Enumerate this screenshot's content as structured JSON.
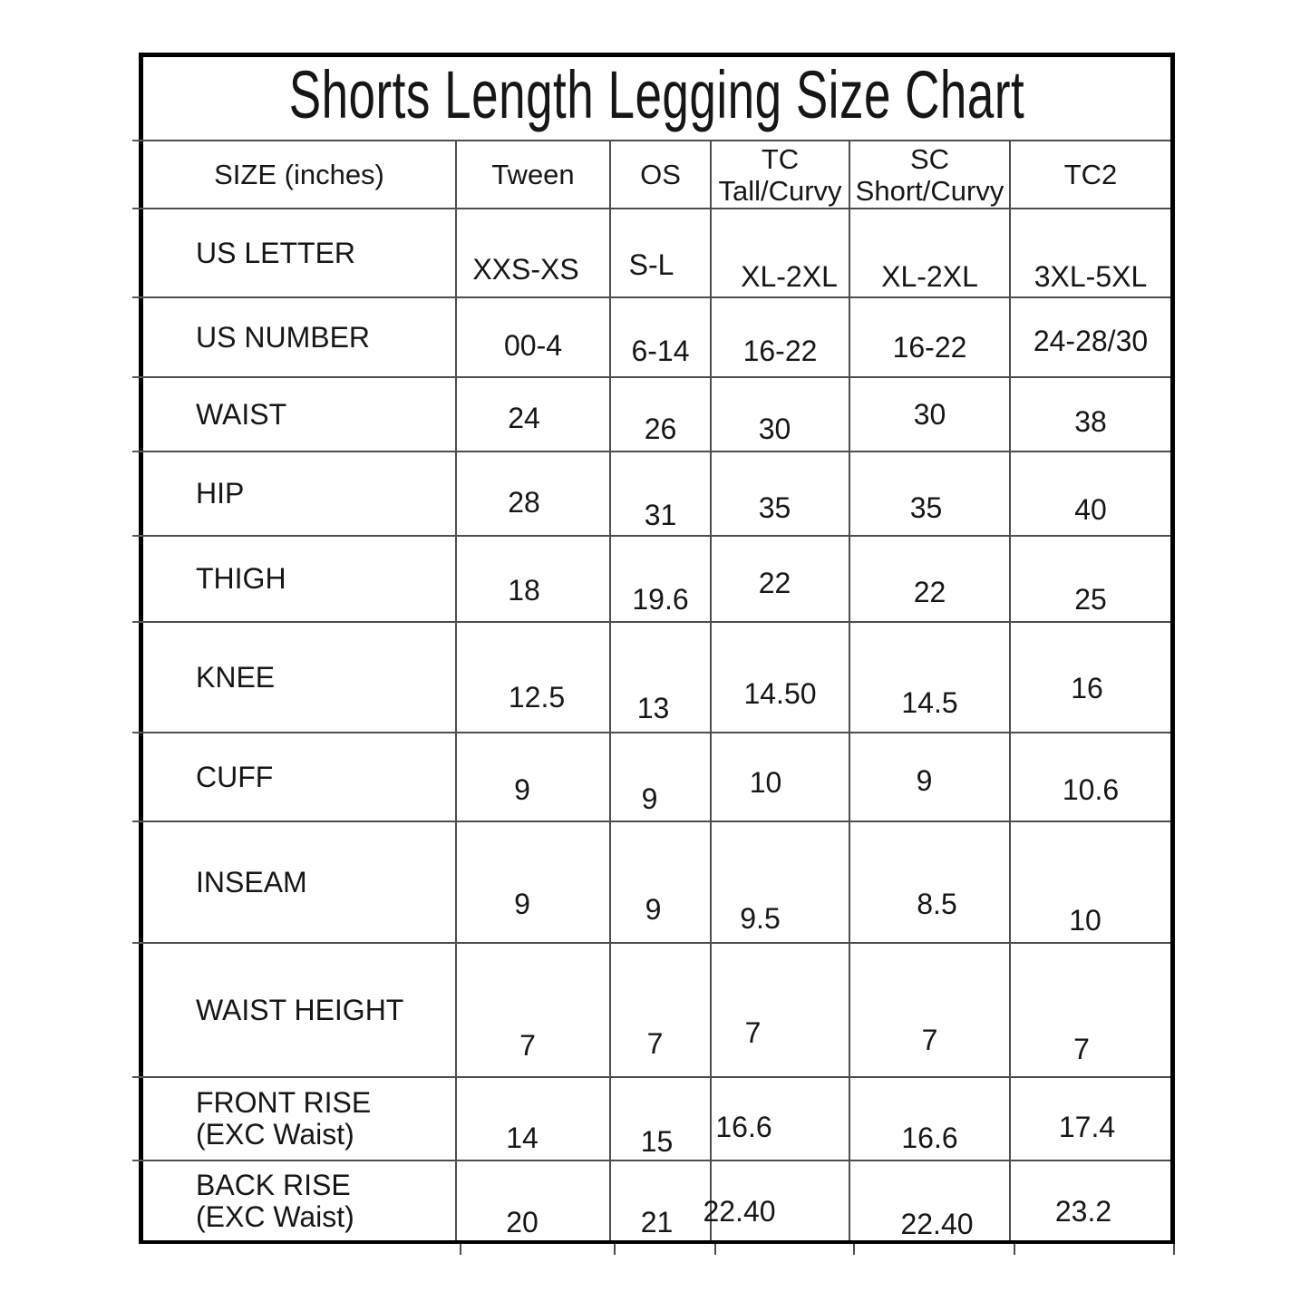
{
  "title": "Shorts Length Legging Size Chart",
  "table": {
    "columns": [
      {
        "id": "size",
        "label": "SIZE (inches)",
        "sublabel": ""
      },
      {
        "id": "tween",
        "label": "Tween",
        "sublabel": ""
      },
      {
        "id": "os",
        "label": "OS",
        "sublabel": ""
      },
      {
        "id": "tc",
        "label": "TC",
        "sublabel": "Tall/Curvy"
      },
      {
        "id": "sc",
        "label": "SC",
        "sublabel": "Short/Curvy"
      },
      {
        "id": "tc2",
        "label": "TC2",
        "sublabel": ""
      }
    ],
    "rows": [
      {
        "id": "us-letter",
        "label": "US LETTER",
        "sublabel": "",
        "values": [
          "XXS-XS",
          "S-L",
          "XL-2XL",
          "XL-2XL",
          "3XL-5XL"
        ]
      },
      {
        "id": "us-number",
        "label": "US NUMBER",
        "sublabel": "",
        "values": [
          "00-4",
          "6-14",
          "16-22",
          "16-22",
          "24-28/30"
        ]
      },
      {
        "id": "waist",
        "label": "WAIST",
        "sublabel": "",
        "values": [
          "24",
          "26",
          "30",
          "30",
          "38"
        ]
      },
      {
        "id": "hip",
        "label": "HIP",
        "sublabel": "",
        "values": [
          "28",
          "31",
          "35",
          "35",
          "40"
        ]
      },
      {
        "id": "thigh",
        "label": "THIGH",
        "sublabel": "",
        "values": [
          "18",
          "19.6",
          "22",
          "22",
          "25"
        ]
      },
      {
        "id": "knee",
        "label": "KNEE",
        "sublabel": "",
        "values": [
          "12.5",
          "13",
          "14.50",
          "14.5",
          "16"
        ]
      },
      {
        "id": "cuff",
        "label": "CUFF",
        "sublabel": "",
        "values": [
          "9",
          "9",
          "10",
          "9",
          "10.6"
        ]
      },
      {
        "id": "inseam",
        "label": "INSEAM",
        "sublabel": "",
        "values": [
          "9",
          "9",
          "9.5",
          "8.5",
          "10"
        ]
      },
      {
        "id": "waist-height",
        "label": "WAIST HEIGHT",
        "sublabel": "",
        "values": [
          "7",
          "7",
          "7",
          "7",
          "7"
        ]
      },
      {
        "id": "front-rise",
        "label": "FRONT RISE",
        "sublabel": "(EXC Waist)",
        "values": [
          "14",
          "15",
          "16.6",
          "16.6",
          "17.4"
        ]
      },
      {
        "id": "back-rise",
        "label": "BACK RISE",
        "sublabel": "(EXC Waist)",
        "values": [
          "20",
          "21",
          "22.40",
          "22.40",
          "23.2"
        ]
      }
    ]
  },
  "chart_data": {
    "type": "table",
    "title": "Shorts Length Legging Size Chart",
    "units": "inches",
    "columns": [
      "SIZE (inches)",
      "Tween",
      "OS",
      "TC Tall/Curvy",
      "SC Short/Curvy",
      "TC2"
    ],
    "rows": [
      [
        "US LETTER",
        "XXS-XS",
        "S-L",
        "XL-2XL",
        "XL-2XL",
        "3XL-5XL"
      ],
      [
        "US NUMBER",
        "00-4",
        "6-14",
        "16-22",
        "16-22",
        "24-28/30"
      ],
      [
        "WAIST",
        24,
        26,
        30,
        30,
        38
      ],
      [
        "HIP",
        28,
        31,
        35,
        35,
        40
      ],
      [
        "THIGH",
        18,
        19.6,
        22,
        22,
        25
      ],
      [
        "KNEE",
        12.5,
        13,
        "14.50",
        14.5,
        16
      ],
      [
        "CUFF",
        9,
        9,
        10,
        9,
        10.6
      ],
      [
        "INSEAM",
        9,
        9,
        9.5,
        8.5,
        10
      ],
      [
        "WAIST HEIGHT",
        7,
        7,
        7,
        7,
        7
      ],
      [
        "FRONT RISE (EXC Waist)",
        14,
        15,
        16.6,
        16.6,
        17.4
      ],
      [
        "BACK RISE (EXC Waist)",
        20,
        21,
        "22.40",
        "22.40",
        23.2
      ]
    ]
  }
}
